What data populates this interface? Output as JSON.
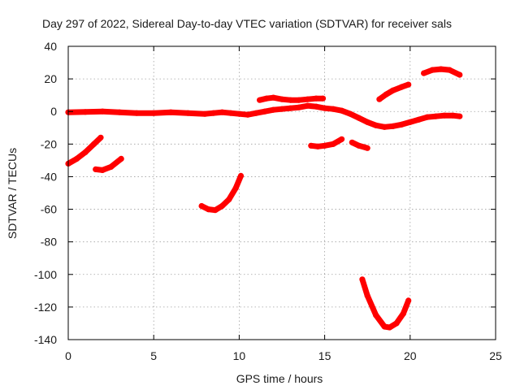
{
  "chart_data": {
    "type": "line",
    "title": "Day 297 of 2022, Sidereal Day-to-day VTEC variation (SDTVAR) for receiver sals",
    "xlabel": "GPS time / hours",
    "ylabel": "SDTVAR / TECUs",
    "xlim": [
      0,
      25
    ],
    "ylim": [
      -140,
      40
    ],
    "xticks": [
      0,
      5,
      10,
      15,
      20,
      25
    ],
    "yticks": [
      -140,
      -120,
      -100,
      -80,
      -60,
      -40,
      -20,
      0,
      20,
      40
    ],
    "grid": true,
    "color": "#ff0000",
    "series": [
      {
        "name": "seg-baseline",
        "x": [
          0,
          1,
          2,
          3,
          4,
          5,
          6,
          7,
          8,
          8.5,
          9,
          9.5,
          10,
          10.5,
          11,
          11.5,
          12,
          12.5,
          13,
          13.5,
          14,
          14.5,
          15,
          15.5,
          16,
          16.5,
          17,
          17.5,
          18,
          18.5,
          19,
          19.5,
          20,
          20.5,
          21,
          21.5,
          22,
          22.5,
          22.9
        ],
        "y": [
          -0.5,
          -0.3,
          0,
          -0.5,
          -1,
          -1,
          -0.5,
          -1,
          -1.5,
          -1,
          -0.5,
          -1,
          -1.5,
          -2,
          -1,
          0,
          1,
          1.5,
          2,
          2.5,
          3.5,
          3,
          2,
          1.5,
          0.5,
          -1.5,
          -4,
          -6.5,
          -8.5,
          -9.5,
          -9,
          -8,
          -6.5,
          -5,
          -3.5,
          -3,
          -2.5,
          -2.5,
          -3
        ]
      },
      {
        "name": "seg-a",
        "x": [
          0,
          0.5,
          1,
          1.5,
          1.9
        ],
        "y": [
          -32,
          -29,
          -25,
          -20,
          -16
        ]
      },
      {
        "name": "seg-b",
        "x": [
          1.6,
          2,
          2.5,
          3.1
        ],
        "y": [
          -35.5,
          -36,
          -34,
          -29
        ]
      },
      {
        "name": "seg-c",
        "x": [
          7.8,
          8.2,
          8.6,
          9,
          9.4,
          9.8,
          10.1
        ],
        "y": [
          -58,
          -60,
          -60.5,
          -58,
          -54,
          -47,
          -39.5
        ]
      },
      {
        "name": "seg-d",
        "x": [
          11.2,
          11.6,
          12,
          12.5,
          13,
          13.5,
          14,
          14.5,
          14.9
        ],
        "y": [
          7,
          8,
          8.5,
          7.5,
          7,
          7,
          7.5,
          8,
          8
        ]
      },
      {
        "name": "seg-e",
        "x": [
          14.2,
          14.6,
          15,
          15.5,
          16
        ],
        "y": [
          -21,
          -21.5,
          -21,
          -20,
          -17
        ]
      },
      {
        "name": "seg-f",
        "x": [
          16.6,
          17,
          17.5
        ],
        "y": [
          -19,
          -21,
          -22.5
        ]
      },
      {
        "name": "seg-g",
        "x": [
          17.2,
          17.5,
          18,
          18.5,
          18.8,
          19.2,
          19.6,
          19.9
        ],
        "y": [
          -103,
          -113,
          -125,
          -132,
          -132.5,
          -130,
          -124,
          -116
        ]
      },
      {
        "name": "seg-h",
        "x": [
          18.2,
          18.6,
          19,
          19.5,
          19.9
        ],
        "y": [
          7.5,
          10.5,
          13,
          15,
          16.5
        ]
      },
      {
        "name": "seg-i",
        "x": [
          20.8,
          21.3,
          21.8,
          22.3,
          22.9
        ],
        "y": [
          23.5,
          25.5,
          26,
          25.5,
          22.5
        ]
      }
    ]
  }
}
